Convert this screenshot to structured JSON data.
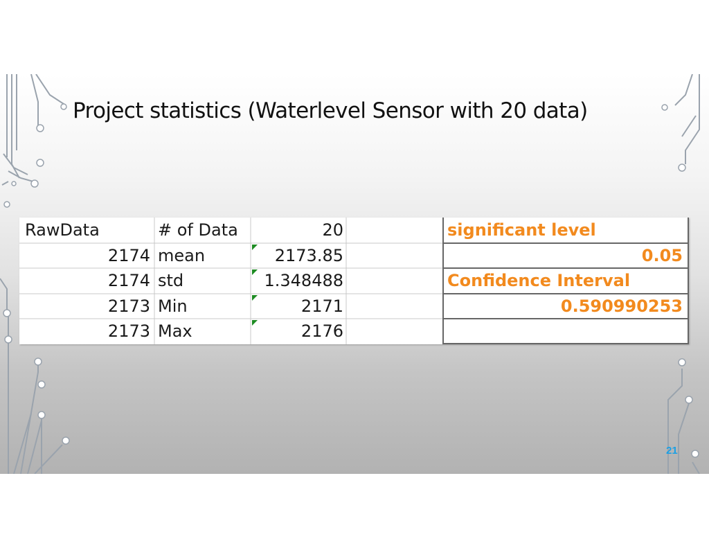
{
  "slide": {
    "title": "Project statistics (Waterlevel Sensor with 20 data)",
    "page_number": "21"
  },
  "table": {
    "rows": [
      [
        "RawData",
        "# of Data",
        "20",
        "",
        "significant level"
      ],
      [
        "2174",
        "mean",
        "2173.85",
        "",
        "0.05"
      ],
      [
        "2174",
        "std",
        "1.348488",
        "",
        "Confidence Interval"
      ],
      [
        "2173",
        "Min",
        "2171",
        "",
        "0.590990253"
      ],
      [
        "2173",
        "Max",
        "2176",
        "",
        ""
      ]
    ]
  },
  "colors": {
    "highlight_text": "#f28a1e",
    "error_indicator": "#1e8c23",
    "page_number": "#1aa0e6"
  }
}
